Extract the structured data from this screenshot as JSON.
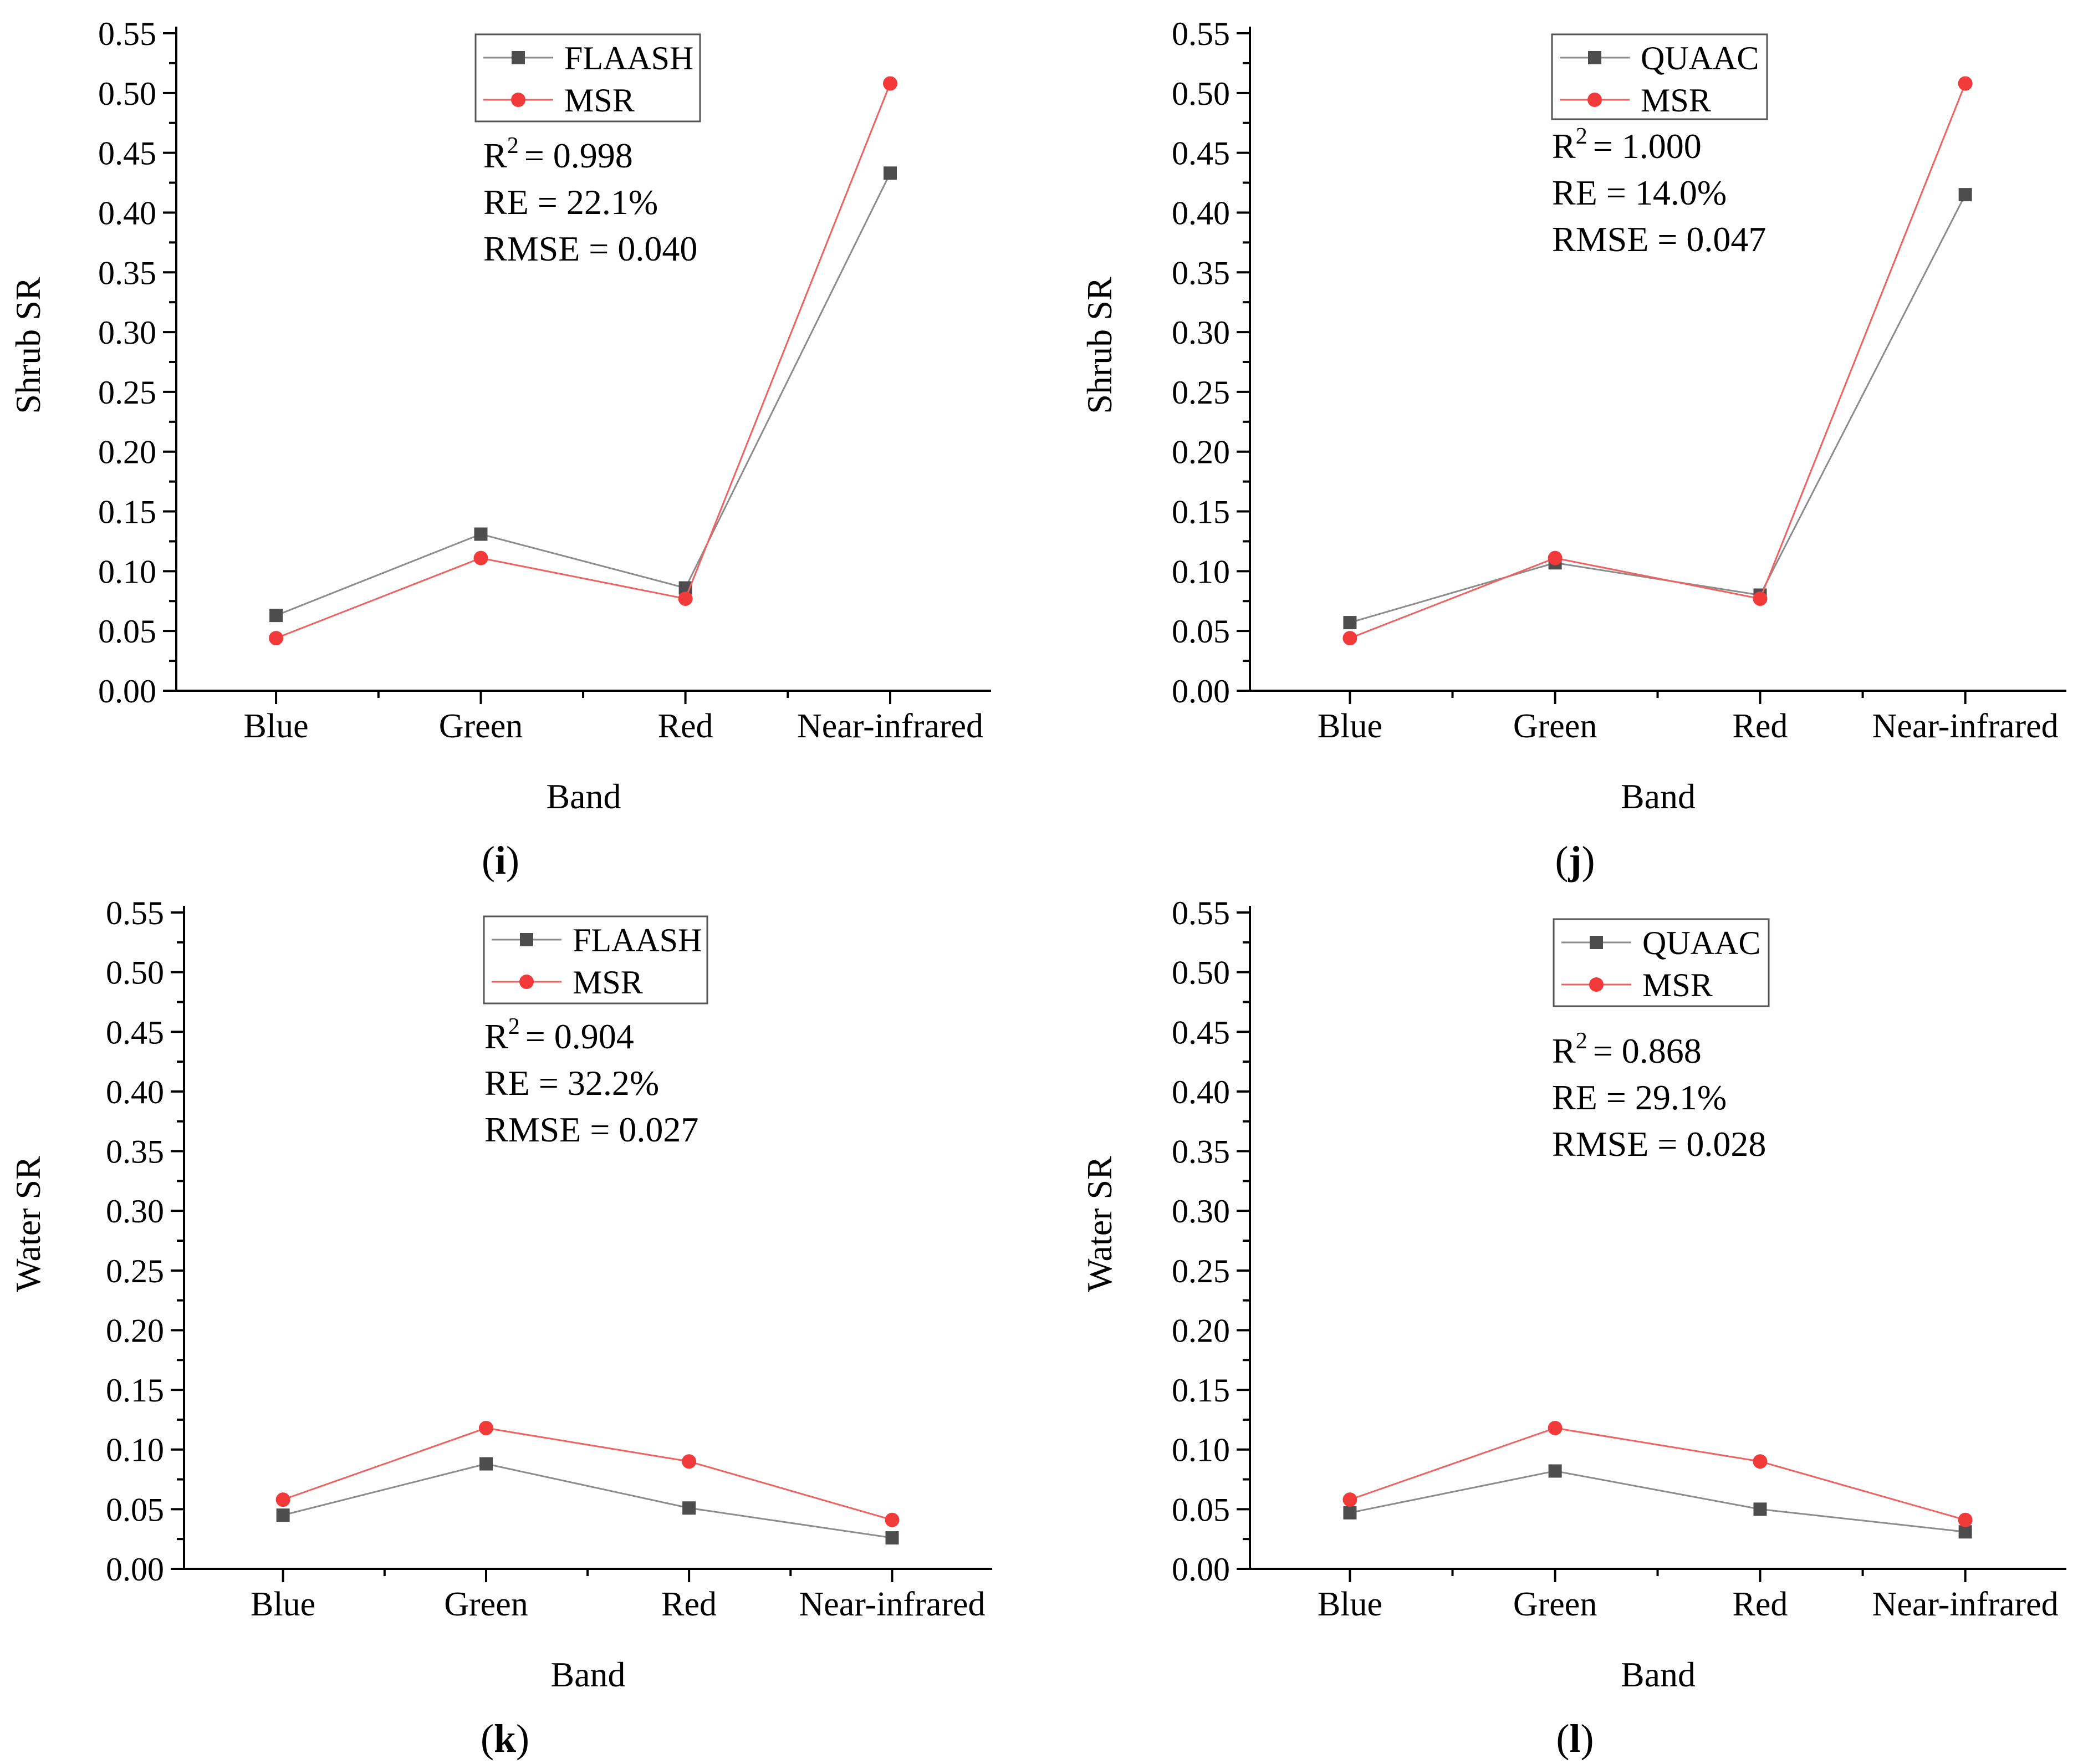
{
  "figure": {
    "panels": [
      {
        "label_open": "(",
        "label_letter": "i",
        "label_close": ")",
        "stats": {
          "r2_prefix": "R",
          "r2_sup": "2",
          "r2_value": "=  0.998",
          "re": "RE = 22.1%",
          "rmse": "RMSE =  0.040"
        }
      },
      {
        "label_open": "(",
        "label_letter": "j",
        "label_close": ")",
        "stats": {
          "r2_prefix": "R",
          "r2_sup": "2",
          "r2_value": "=  1.000",
          "re": "RE = 14.0%",
          "rmse": "RMSE =  0.047"
        }
      },
      {
        "label_open": "(",
        "label_letter": "k",
        "label_close": ")",
        "stats": {
          "r2_prefix": "R",
          "r2_sup": "2",
          "r2_value": "=  0.904",
          "re": "RE = 32.2%",
          "rmse": "RMSE =  0.027"
        }
      },
      {
        "label_open": "(",
        "label_letter": "l",
        "label_close": ")",
        "stats": {
          "r2_prefix": "R",
          "r2_sup": "2",
          "r2_value": "=  0.868",
          "re": "RE = 29.1%",
          "rmse": "RMSE =  0.028"
        }
      }
    ]
  },
  "colors": {
    "series_gray": "#4d4d4d",
    "series_red": "#f23a3a",
    "line_gray": "#8c8c8c",
    "line_red": "#f06262",
    "axis": "#000000"
  },
  "chart_data": [
    {
      "type": "line",
      "xlabel": "Band",
      "ylabel": "Shrub SR",
      "categories": [
        "Blue",
        "Green",
        "Red",
        "Near-infrared"
      ],
      "ylim": [
        0,
        0.55
      ],
      "yticks": [
        "0.00",
        "0.05",
        "0.10",
        "0.15",
        "0.20",
        "0.25",
        "0.30",
        "0.35",
        "0.40",
        "0.45",
        "0.50",
        "0.55"
      ],
      "legend_position": "top-center",
      "series": [
        {
          "name": "FLAASH",
          "marker": "square",
          "values": [
            0.063,
            0.131,
            0.086,
            0.433
          ]
        },
        {
          "name": "MSR",
          "marker": "circle",
          "values": [
            0.044,
            0.111,
            0.077,
            0.508
          ]
        }
      ]
    },
    {
      "type": "line",
      "xlabel": "Band",
      "ylabel": "Shrub SR",
      "categories": [
        "Blue",
        "Green",
        "Red",
        "Near-infrared"
      ],
      "ylim": [
        0,
        0.55
      ],
      "yticks": [
        "0.00",
        "0.05",
        "0.10",
        "0.15",
        "0.20",
        "0.25",
        "0.30",
        "0.35",
        "0.40",
        "0.45",
        "0.50",
        "0.55"
      ],
      "legend_position": "top-center",
      "series": [
        {
          "name": "QUAAC",
          "marker": "square",
          "values": [
            0.057,
            0.107,
            0.08,
            0.415
          ]
        },
        {
          "name": "MSR",
          "marker": "circle",
          "values": [
            0.044,
            0.111,
            0.077,
            0.508
          ]
        }
      ]
    },
    {
      "type": "line",
      "xlabel": "Band",
      "ylabel": "Water SR",
      "categories": [
        "Blue",
        "Green",
        "Red",
        "Near-infrared"
      ],
      "ylim": [
        0,
        0.55
      ],
      "yticks": [
        "0.00",
        "0.05",
        "0.10",
        "0.15",
        "0.20",
        "0.25",
        "0.30",
        "0.35",
        "0.40",
        "0.45",
        "0.50",
        "0.55"
      ],
      "legend_position": "top-center",
      "series": [
        {
          "name": "FLAASH",
          "marker": "square",
          "values": [
            0.045,
            0.088,
            0.051,
            0.026
          ]
        },
        {
          "name": "MSR",
          "marker": "circle",
          "values": [
            0.058,
            0.118,
            0.09,
            0.041
          ]
        }
      ]
    },
    {
      "type": "line",
      "xlabel": "Band",
      "ylabel": "Water SR",
      "categories": [
        "Blue",
        "Green",
        "Red",
        "Near-infrared"
      ],
      "ylim": [
        0,
        0.55
      ],
      "yticks": [
        "0.00",
        "0.05",
        "0.10",
        "0.15",
        "0.20",
        "0.25",
        "0.30",
        "0.35",
        "0.40",
        "0.45",
        "0.50",
        "0.55"
      ],
      "legend_position": "top-center",
      "series": [
        {
          "name": "QUAAC",
          "marker": "square",
          "values": [
            0.047,
            0.082,
            0.05,
            0.031
          ]
        },
        {
          "name": "MSR",
          "marker": "circle",
          "values": [
            0.058,
            0.118,
            0.09,
            0.041
          ]
        }
      ]
    }
  ]
}
